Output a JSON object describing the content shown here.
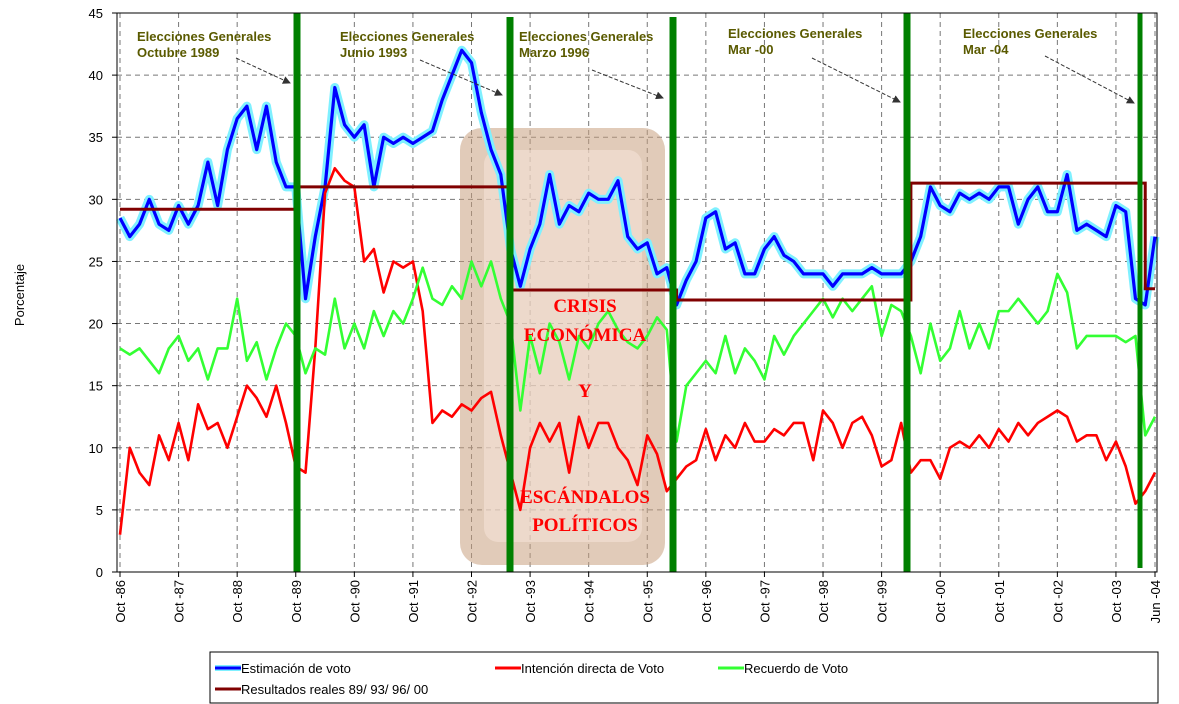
{
  "chart_data": {
    "type": "line",
    "y_label": "Porcentaje",
    "ylim": [
      0,
      45
    ],
    "yticks": [
      0,
      5,
      10,
      15,
      20,
      25,
      30,
      35,
      40,
      45
    ],
    "grid": true,
    "categories": [
      "Oct -86",
      null,
      null,
      null,
      null,
      null,
      "Oct -87",
      null,
      null,
      null,
      null,
      null,
      "Oct -88",
      null,
      null,
      null,
      null,
      null,
      "Oct -89",
      null,
      null,
      null,
      null,
      null,
      "Oct -90",
      null,
      null,
      null,
      null,
      null,
      "Oct -91",
      null,
      null,
      null,
      null,
      null,
      "Oct -92",
      null,
      null,
      null,
      null,
      null,
      "Oct -93",
      null,
      null,
      null,
      null,
      null,
      "Oct -94",
      null,
      null,
      null,
      null,
      null,
      "Oct -95",
      null,
      null,
      null,
      null,
      null,
      "Oct -96",
      null,
      null,
      null,
      null,
      null,
      "Oct -97",
      null,
      null,
      null,
      null,
      null,
      "Oct -98",
      null,
      null,
      null,
      null,
      null,
      "Oct -99",
      null,
      null,
      null,
      null,
      null,
      "Oct -00",
      null,
      null,
      null,
      null,
      null,
      "Oct -01",
      null,
      null,
      null,
      null,
      null,
      "Oct -02",
      null,
      null,
      null,
      null,
      null,
      "Oct -03",
      null,
      null,
      null,
      "Jun -04"
    ],
    "series": [
      {
        "name": "Estimación de voto",
        "color": "#0000ff",
        "halo": "#7ff0ff",
        "values": [
          28.5,
          27,
          28,
          30,
          28,
          27.5,
          29.5,
          28,
          29.5,
          33,
          29.5,
          34,
          36.5,
          37.5,
          34,
          37.5,
          33,
          31,
          31,
          22,
          27,
          31,
          39,
          36,
          35,
          36,
          31,
          35,
          34.5,
          35,
          34.5,
          35,
          35.5,
          38,
          40,
          42,
          41,
          37,
          34,
          32,
          26,
          23,
          26,
          28,
          32,
          28,
          29.5,
          29,
          30.5,
          30,
          30,
          31.5,
          27,
          26,
          26.5,
          24,
          24.5,
          21.5,
          23.5,
          25,
          28.5,
          29,
          26,
          26.5,
          24,
          24,
          26,
          27,
          25.5,
          25,
          24,
          24,
          24,
          23,
          24,
          24,
          24,
          24.5,
          24,
          24,
          24,
          25,
          27,
          31,
          29.5,
          29,
          30.5,
          30,
          30.5,
          30,
          31,
          31,
          28,
          30,
          31,
          29,
          29,
          32,
          27.5,
          28,
          27.5,
          27,
          29.5,
          29,
          22,
          21.5,
          27
        ]
      },
      {
        "name": "Intención directa de Voto",
        "color": "#ff0000",
        "values": [
          3,
          10,
          8,
          7,
          11,
          9,
          12,
          9,
          13.5,
          11.5,
          12,
          10,
          12.5,
          15,
          14,
          12.5,
          15,
          12,
          8.5,
          8,
          18,
          30.5,
          32.5,
          31.5,
          31,
          25,
          26,
          22.5,
          25,
          24.5,
          25,
          21,
          12,
          13,
          12.5,
          13.5,
          13,
          14,
          14.5,
          11,
          8,
          5,
          10,
          12,
          10.5,
          12,
          8,
          12.5,
          10,
          12,
          12,
          10,
          9,
          7,
          11,
          9.5,
          6.5,
          7.5,
          8.5,
          9,
          11.5,
          9,
          11,
          10,
          12,
          10.5,
          10.5,
          11.5,
          11,
          12,
          12,
          9,
          13,
          12,
          10,
          12,
          12.5,
          11,
          8.5,
          9,
          12,
          8,
          9,
          9,
          7.5,
          10,
          10.5,
          10,
          11,
          10,
          11.5,
          10.5,
          12,
          11,
          12,
          12.5,
          13,
          12.5,
          10.5,
          11,
          11,
          9,
          10.5,
          8.5,
          5.5,
          6.5,
          8
        ]
      },
      {
        "name": "Recuerdo de Voto",
        "color": "#33ff33",
        "values": [
          18,
          17.5,
          18,
          17,
          16,
          18,
          19,
          17,
          18,
          15.5,
          18,
          18,
          22,
          17,
          18.5,
          15.5,
          18,
          20,
          19,
          16,
          18,
          17.5,
          22,
          18,
          20,
          18,
          21,
          19,
          21,
          20,
          22,
          24.5,
          22,
          21.5,
          23,
          22,
          25,
          23,
          25,
          22,
          20,
          13,
          19,
          16,
          20,
          18.5,
          15.5,
          19,
          18,
          20,
          21,
          19.5,
          18.5,
          18,
          19,
          20.5,
          19.5,
          10.5,
          15,
          16,
          17,
          16,
          19,
          16,
          18,
          17,
          15.5,
          19,
          17.5,
          19,
          20,
          21,
          22,
          20.5,
          22,
          21,
          22,
          23,
          19,
          21.5,
          21,
          19,
          16,
          20,
          17,
          18,
          21,
          18,
          20,
          18,
          21,
          21,
          22,
          21,
          20,
          21,
          24,
          22.5,
          18,
          19,
          19,
          19,
          19,
          18.5,
          19,
          11,
          12.5
        ]
      },
      {
        "name": "Resultados reales 89/ 93/ 96/ 00",
        "color": "#800000",
        "step": true,
        "values": [
          29.2,
          29.2,
          29.2,
          29.2,
          29.2,
          29.2,
          29.2,
          29.2,
          29.2,
          29.2,
          29.2,
          29.2,
          29.2,
          29.2,
          29.2,
          29.2,
          29.2,
          29.2,
          31,
          31,
          31,
          31,
          31,
          31,
          31,
          31,
          31,
          31,
          31,
          31,
          31,
          31,
          31,
          31,
          31,
          31,
          31,
          31,
          31,
          31,
          22.7,
          22.7,
          22.7,
          22.7,
          22.7,
          22.7,
          22.7,
          22.7,
          22.7,
          22.7,
          22.7,
          22.7,
          22.7,
          22.7,
          22.7,
          22.7,
          22.7,
          21.9,
          21.9,
          21.9,
          21.9,
          21.9,
          21.9,
          21.9,
          21.9,
          21.9,
          21.9,
          21.9,
          21.9,
          21.9,
          21.9,
          21.9,
          21.9,
          21.9,
          21.9,
          21.9,
          21.9,
          21.9,
          21.9,
          21.9,
          21.9,
          31.3,
          31.3,
          31.3,
          31.3,
          31.3,
          31.3,
          31.3,
          31.3,
          31.3,
          31.3,
          31.3,
          31.3,
          31.3,
          31.3,
          31.3,
          31.3,
          31.3,
          31.3,
          31.3,
          31.3,
          31.3,
          31.3,
          31.3,
          31.3,
          22.8,
          22.8
        ]
      }
    ],
    "annotations": [
      [
        "Elecciones Generales",
        "Octubre 1989"
      ],
      [
        "Elecciones Generales",
        "Junio 1993"
      ],
      [
        "Elecciones Generales",
        "Marzo 1996"
      ],
      [
        "Elecciones Generales",
        "Mar -00"
      ],
      [
        "Elecciones Generales",
        "Mar -04"
      ]
    ],
    "crisis_annotation": [
      "CRISIS",
      "ECONÓMICA",
      "Y",
      "ESCÁNDALOS",
      "POLÍTICOS"
    ]
  }
}
